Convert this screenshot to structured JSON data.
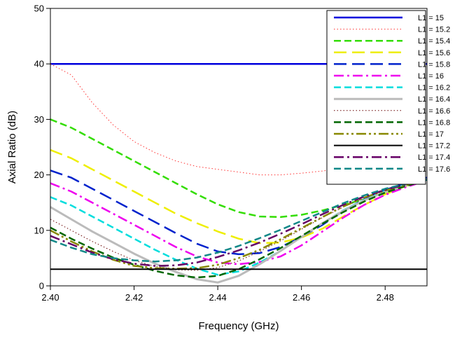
{
  "chart_data": {
    "type": "line",
    "xlabel": "Frequency (GHz)",
    "ylabel": "Axial Ratio (dB)",
    "xlim": [
      2.4,
      2.49
    ],
    "ylim": [
      0,
      50
    ],
    "x_ticks": [
      "2.40",
      "2.42",
      "2.44",
      "2.46",
      "2.48"
    ],
    "y_ticks": [
      "0",
      "10",
      "20",
      "30",
      "40",
      "50"
    ],
    "grid": false,
    "legend_position": "top-right",
    "x": [
      2.4,
      2.405,
      2.41,
      2.415,
      2.42,
      2.425,
      2.43,
      2.435,
      2.44,
      2.445,
      2.45,
      2.455,
      2.46,
      2.465,
      2.47,
      2.475,
      2.48,
      2.485,
      2.49
    ],
    "series": [
      {
        "name": "L1 = 15",
        "color": "#0000dd",
        "dash": "solid",
        "width": 2.5,
        "values": [
          40,
          40,
          40,
          40,
          40,
          40,
          40,
          40,
          40,
          40,
          40,
          40,
          40,
          40,
          40,
          40,
          40,
          40,
          40
        ]
      },
      {
        "name": "L1 = 15.2",
        "color": "#ff3333",
        "dash": "dotted",
        "width": 1,
        "values": [
          40,
          38,
          33,
          29,
          26,
          24,
          22.5,
          21.5,
          21,
          20.5,
          20,
          20,
          20.3,
          20.7,
          21.2,
          21.8,
          22.5,
          23,
          23.5
        ]
      },
      {
        "name": "L1 = 15.4",
        "color": "#33dd00",
        "dash": "dash",
        "width": 2.5,
        "values": [
          30,
          28.5,
          26.5,
          24.5,
          22.5,
          20.5,
          18.5,
          16.5,
          14.7,
          13.3,
          12.5,
          12.4,
          12.8,
          13.6,
          14.6,
          15.6,
          16.8,
          18,
          19.3
        ]
      },
      {
        "name": "L1 = 15.6",
        "color": "#eeee00",
        "dash": "longdash",
        "width": 2.5,
        "values": [
          24.5,
          23,
          21,
          19,
          17,
          15,
          13,
          11.3,
          9.8,
          8.5,
          7.7,
          7.8,
          8.7,
          10.3,
          12.5,
          14.6,
          16.5,
          18,
          19.3
        ]
      },
      {
        "name": "L1 = 15.8",
        "color": "#0022cc",
        "dash": "longdash",
        "width": 2.5,
        "values": [
          20.8,
          19.5,
          17.5,
          15.5,
          13.5,
          11.5,
          9.5,
          7.6,
          6.2,
          5.7,
          5.9,
          7,
          8.8,
          11,
          13.5,
          15.6,
          17.3,
          18.5,
          19.5
        ]
      },
      {
        "name": "L1 = 16",
        "color": "#ee00ee",
        "dash": "dashdot",
        "width": 2.5,
        "values": [
          18.5,
          17,
          15,
          13,
          11,
          9,
          7,
          5.3,
          4.2,
          3.9,
          4.3,
          5.3,
          7.3,
          9.8,
          12.3,
          14.6,
          16.4,
          17.8,
          19
        ]
      },
      {
        "name": "L1 = 16.2",
        "color": "#00dddd",
        "dash": "dash",
        "width": 2.5,
        "values": [
          16,
          14.5,
          12.5,
          10.5,
          8.5,
          6.5,
          4.7,
          3.1,
          2,
          2.6,
          4.2,
          6.3,
          8.8,
          11.3,
          13.6,
          15.5,
          17.1,
          18.3,
          19.3
        ]
      },
      {
        "name": "L1 = 16.4",
        "color": "#bbbbbb",
        "dash": "solid",
        "width": 3,
        "values": [
          14.2,
          12,
          9.8,
          7.8,
          5.8,
          4,
          2.5,
          1.2,
          0.6,
          1.8,
          3.9,
          6.3,
          8.8,
          11.3,
          13.5,
          15.4,
          16.9,
          18.1,
          19.2
        ]
      },
      {
        "name": "L1 = 16.6",
        "color": "#660000",
        "dash": "dotted",
        "width": 1,
        "values": [
          12,
          10,
          8,
          6.2,
          4.6,
          3.5,
          2.9,
          2.8,
          3.3,
          4.5,
          6.2,
          8.1,
          10.2,
          12.3,
          14.2,
          15.8,
          17.2,
          18.3,
          19.2
        ]
      },
      {
        "name": "L1 = 16.8",
        "color": "#006600",
        "dash": "dash",
        "width": 2.5,
        "values": [
          10.5,
          8.5,
          6.7,
          5.1,
          3.8,
          2.7,
          1.9,
          1.5,
          1.8,
          3,
          4.8,
          6.8,
          9,
          11.2,
          13.3,
          15.2,
          16.8,
          18,
          19
        ]
      },
      {
        "name": "L1 = 17",
        "color": "#888800",
        "dash": "dashdotdot",
        "width": 2.5,
        "values": [
          10,
          8,
          6.2,
          4.7,
          3.6,
          3.2,
          3.1,
          3.2,
          3.8,
          5,
          6.5,
          8.4,
          10.4,
          12.4,
          14.3,
          15.9,
          17.2,
          18.2,
          19
        ]
      },
      {
        "name": "L1 = 17.2",
        "color": "#000000",
        "dash": "solid",
        "width": 2,
        "values": [
          3,
          3,
          3,
          3,
          3,
          3,
          3,
          3,
          3,
          3,
          3,
          3,
          3,
          3,
          3,
          3,
          3,
          3,
          3
        ]
      },
      {
        "name": "L1 = 17.4",
        "color": "#660066",
        "dash": "dashdot",
        "width": 2.5,
        "values": [
          9,
          7.5,
          6,
          4.8,
          4,
          3.6,
          3.7,
          4.2,
          5.2,
          6.4,
          7.8,
          9.4,
          11.1,
          12.9,
          14.6,
          16.1,
          17.3,
          18.3,
          19.1
        ]
      },
      {
        "name": "L1 = 17.6",
        "color": "#118888",
        "dash": "dash",
        "width": 2.5,
        "values": [
          8.3,
          6.9,
          5.7,
          5,
          4.6,
          4.4,
          4.6,
          5.1,
          6,
          7.2,
          8.6,
          10.1,
          11.7,
          13.3,
          14.9,
          16.3,
          17.5,
          18.4,
          19.1
        ]
      }
    ]
  }
}
